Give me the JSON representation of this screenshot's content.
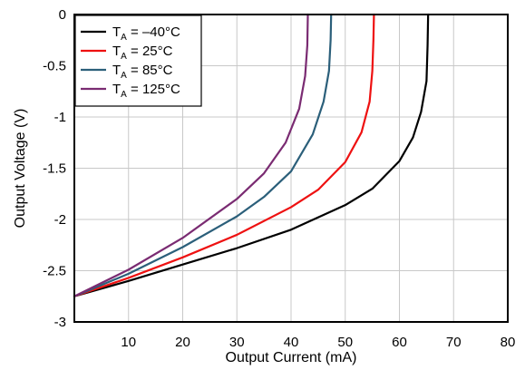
{
  "chart_data": {
    "type": "line",
    "xlabel": "Output Current (mA)",
    "ylabel": "Output Voltage (V)",
    "xlim": [
      0,
      80
    ],
    "ylim": [
      -3,
      0
    ],
    "xticks": [
      10,
      20,
      30,
      40,
      50,
      60,
      70,
      80
    ],
    "yticks": [
      0,
      -0.5,
      -1,
      -1.5,
      -2,
      -2.5,
      -3
    ],
    "xtick_labels": [
      "10",
      "20",
      "30",
      "40",
      "50",
      "60",
      "70",
      "80"
    ],
    "ytick_labels": [
      "0",
      "-0.5",
      "-1",
      "-1.5",
      "-2",
      "-2.5",
      "-3"
    ],
    "grid": true,
    "legend_position": "top-left",
    "series": [
      {
        "name": "TA = -40°C",
        "label_main": "T",
        "label_sub": "A",
        "label_rest": " = –40°C",
        "color": "#000000",
        "x": [
          0,
          10,
          20,
          30,
          40,
          50,
          55,
          60,
          62.5,
          64,
          65,
          65.2,
          65.3
        ],
        "y": [
          -2.75,
          -2.6,
          -2.44,
          -2.28,
          -2.1,
          -1.86,
          -1.7,
          -1.43,
          -1.2,
          -0.95,
          -0.65,
          -0.3,
          0
        ]
      },
      {
        "name": "TA = 25°C",
        "label_main": "T",
        "label_sub": "A",
        "label_rest": " = 25°C",
        "color": "#ee1111",
        "x": [
          0,
          10,
          20,
          30,
          40,
          45,
          50,
          53,
          54.5,
          55,
          55.2,
          55.3
        ],
        "y": [
          -2.75,
          -2.57,
          -2.37,
          -2.15,
          -1.88,
          -1.71,
          -1.44,
          -1.15,
          -0.85,
          -0.55,
          -0.25,
          0
        ]
      },
      {
        "name": "TA = 85°C",
        "label_main": "T",
        "label_sub": "A",
        "label_rest": " = 85°C",
        "color": "#2b5f7a",
        "x": [
          0,
          10,
          20,
          30,
          35,
          40,
          44,
          46,
          47,
          47.3,
          47.4
        ],
        "y": [
          -2.75,
          -2.53,
          -2.27,
          -1.97,
          -1.78,
          -1.53,
          -1.17,
          -0.85,
          -0.55,
          -0.25,
          0
        ]
      },
      {
        "name": "TA = 125°C",
        "label_main": "T",
        "label_sub": "A",
        "label_rest": " = 125°C",
        "color": "#7a2b72",
        "x": [
          0,
          10,
          20,
          30,
          35,
          39,
          41.5,
          42.6,
          43,
          43.1
        ],
        "y": [
          -2.75,
          -2.49,
          -2.18,
          -1.8,
          -1.55,
          -1.25,
          -0.92,
          -0.6,
          -0.3,
          0
        ]
      }
    ]
  }
}
